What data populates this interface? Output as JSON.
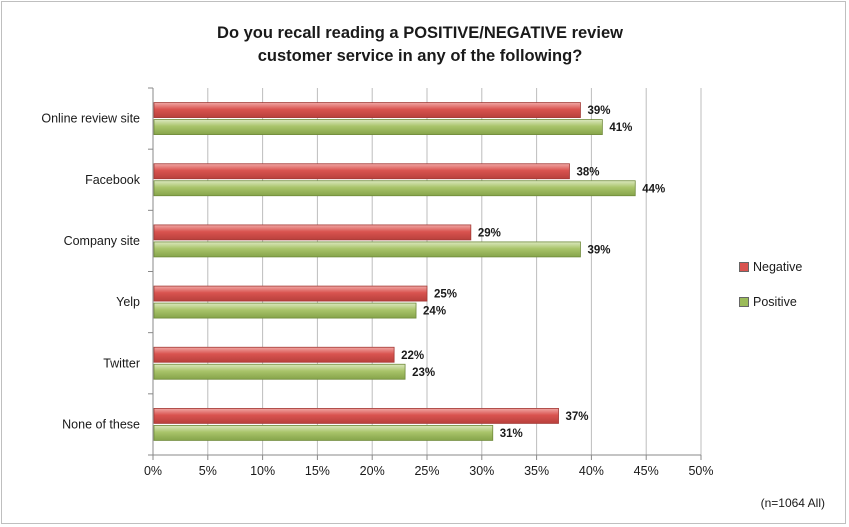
{
  "chart_data": {
    "type": "bar",
    "orientation": "horizontal",
    "title": [
      "Do you recall reading a POSITIVE/NEGATIVE review",
      "customer service in any of the following?"
    ],
    "categories": [
      "Online review site",
      "Facebook",
      "Company site",
      "Yelp",
      "Twitter",
      "None of these"
    ],
    "series": [
      {
        "name": "Negative",
        "color": "#d9534f",
        "values": [
          39,
          38,
          29,
          25,
          22,
          37
        ],
        "labels": [
          "39%",
          "38%",
          "29%",
          "25%",
          "22%",
          "37%"
        ]
      },
      {
        "name": "Positive",
        "color": "#9bbb59",
        "values": [
          41,
          44,
          39,
          24,
          23,
          31
        ],
        "labels": [
          "41%",
          "44%",
          "39%",
          "24%",
          "23%",
          "31%"
        ]
      }
    ],
    "xlim": [
      0,
      50
    ],
    "xticks": [
      "0%",
      "5%",
      "10%",
      "15%",
      "20%",
      "25%",
      "30%",
      "35%",
      "40%",
      "45%",
      "50%"
    ],
    "grid": true,
    "legend_position": "right",
    "note": "(n=1064 All)"
  }
}
